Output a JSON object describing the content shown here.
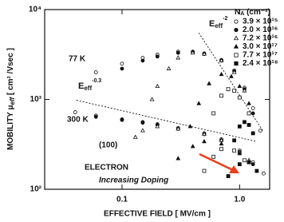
{
  "chart_data": {
    "type": "scatter",
    "xlabel": "EFFECTIVE FIELD [ MV/cm ]",
    "ylabel": [
      "MOBILITY  μ",
      "eff",
      " [ cm² /Vsec ]"
    ],
    "log_x": true,
    "log_y": true,
    "xlim": [
      0.022,
      1.8
    ],
    "ylim": [
      100,
      10000
    ],
    "xticks": [
      0.1,
      {
        "value": 1,
        "label": "1.0"
      }
    ],
    "yticks": [
      {
        "value": 100,
        "label": "10²"
      },
      {
        "value": 1000,
        "label": "10³"
      },
      {
        "value": 10000,
        "label": "10⁴"
      }
    ],
    "legend_title": [
      "N",
      "A",
      " (cm⁻³)"
    ],
    "legend": "upper right",
    "series": [
      {
        "name": "3.9 × 10¹⁵",
        "marker": "open-circle",
        "color": "#111111",
        "branches": [
          {
            "x": [
              0.06,
              0.1,
              0.15,
              0.2,
              0.3,
              0.4,
              0.5,
              0.7,
              0.9,
              1.1,
              1.3,
              1.5
            ],
            "values": [
              2000,
              2500,
              2900,
              3150,
              3400,
              3400,
              3250,
              2750,
              2100,
              1350,
              800,
              450
            ]
          },
          {
            "x": [
              0.04,
              0.06,
              0.1,
              0.15,
              0.2,
              0.3,
              0.5,
              0.7,
              1.0,
              1.3,
              1.6
            ],
            "values": [
              720,
              660,
              600,
              560,
              530,
              480,
              420,
              360,
              270,
              200,
              150
            ]
          }
        ]
      },
      {
        "name": "2.0 × 10¹⁶",
        "marker": "filled-circle",
        "color": "#111111",
        "branches": [
          {
            "x": [
              0.1,
              0.15,
              0.2,
              0.3,
              0.4,
              0.5,
              0.7,
              0.9,
              1.1,
              1.3
            ],
            "values": [
              2200,
              2700,
              3000,
              3300,
              3350,
              3200,
              2700,
              2050,
              1300,
              700
            ]
          },
          {
            "x": [
              0.06,
              0.1,
              0.15,
              0.2,
              0.3,
              0.5,
              0.7,
              1.0,
              1.3
            ],
            "values": [
              640,
              590,
              550,
              520,
              470,
              410,
              350,
              260,
              190
            ]
          }
        ]
      },
      {
        "name": "7.2 × 10¹⁶",
        "marker": "open-triangle",
        "color": "#111111",
        "branches": [
          {
            "x": [
              0.18,
              0.2,
              0.25,
              0.3,
              0.4,
              0.5,
              0.7,
              0.9,
              1.1
            ],
            "values": [
              1000,
              1400,
              2200,
              2900,
              3300,
              3200,
              2700,
              2000,
              1250
            ]
          },
          {
            "x": [
              0.13,
              0.15,
              0.2,
              0.3,
              0.5,
              0.7,
              1.0,
              1.2
            ],
            "values": [
              380,
              450,
              500,
              470,
              410,
              350,
              260,
              210
            ]
          }
        ]
      },
      {
        "name": "3.0 × 10¹⁷",
        "marker": "filled-triangle",
        "color": "#111111",
        "branches": [
          {
            "x": [
              0.38,
              0.45,
              0.55,
              0.7,
              0.85,
              1.0,
              1.2
            ],
            "values": [
              500,
              900,
              1500,
              1900,
              1800,
              1400,
              900
            ]
          },
          {
            "x": [
              0.3,
              0.4,
              0.5,
              0.7,
              1.0,
              1.2
            ],
            "values": [
              220,
              300,
              340,
              320,
              250,
              200
            ]
          }
        ]
      },
      {
        "name": "7.7 × 10¹⁷",
        "marker": "open-square",
        "color": "#111111",
        "branches": [
          {
            "x": [
              0.6,
              0.7,
              0.8,
              0.9,
              1.0,
              1.2
            ],
            "values": [
              700,
              1100,
              1300,
              1250,
              1050,
              700
            ]
          },
          {
            "x": [
              0.5,
              0.6,
              0.7,
              0.9,
              1.1
            ],
            "values": [
              160,
              230,
              280,
              270,
              210
            ]
          }
        ]
      },
      {
        "name": "2.4 × 10¹⁸",
        "marker": "filled-square",
        "color": "#111111",
        "branches": [
          {
            "x": [
              0.9,
              1.0,
              1.1,
              1.2,
              1.3
            ],
            "values": [
              350,
              500,
              560,
              520,
              420
            ]
          },
          {
            "x": [
              0.8,
              1.0,
              1.2,
              1.4
            ],
            "values": [
              140,
              190,
              200,
              160
            ]
          }
        ]
      }
    ],
    "guides": [
      {
        "label": [
          "E",
          "eff",
          "-2"
        ],
        "x": [
          0.45,
          1.6
        ],
        "values": [
          5500,
          435
        ]
      },
      {
        "label": [
          "E",
          "eff",
          "-0.3"
        ],
        "x": [
          0.041,
          1.37
        ],
        "values": [
          980,
          342
        ]
      }
    ],
    "annotations": {
      "t77": "77 K",
      "t300": "300 K",
      "orientation": "(100)",
      "carrier": "ELECTRON",
      "doping": "Increasing Doping",
      "doping_color": "#e8401c"
    }
  }
}
